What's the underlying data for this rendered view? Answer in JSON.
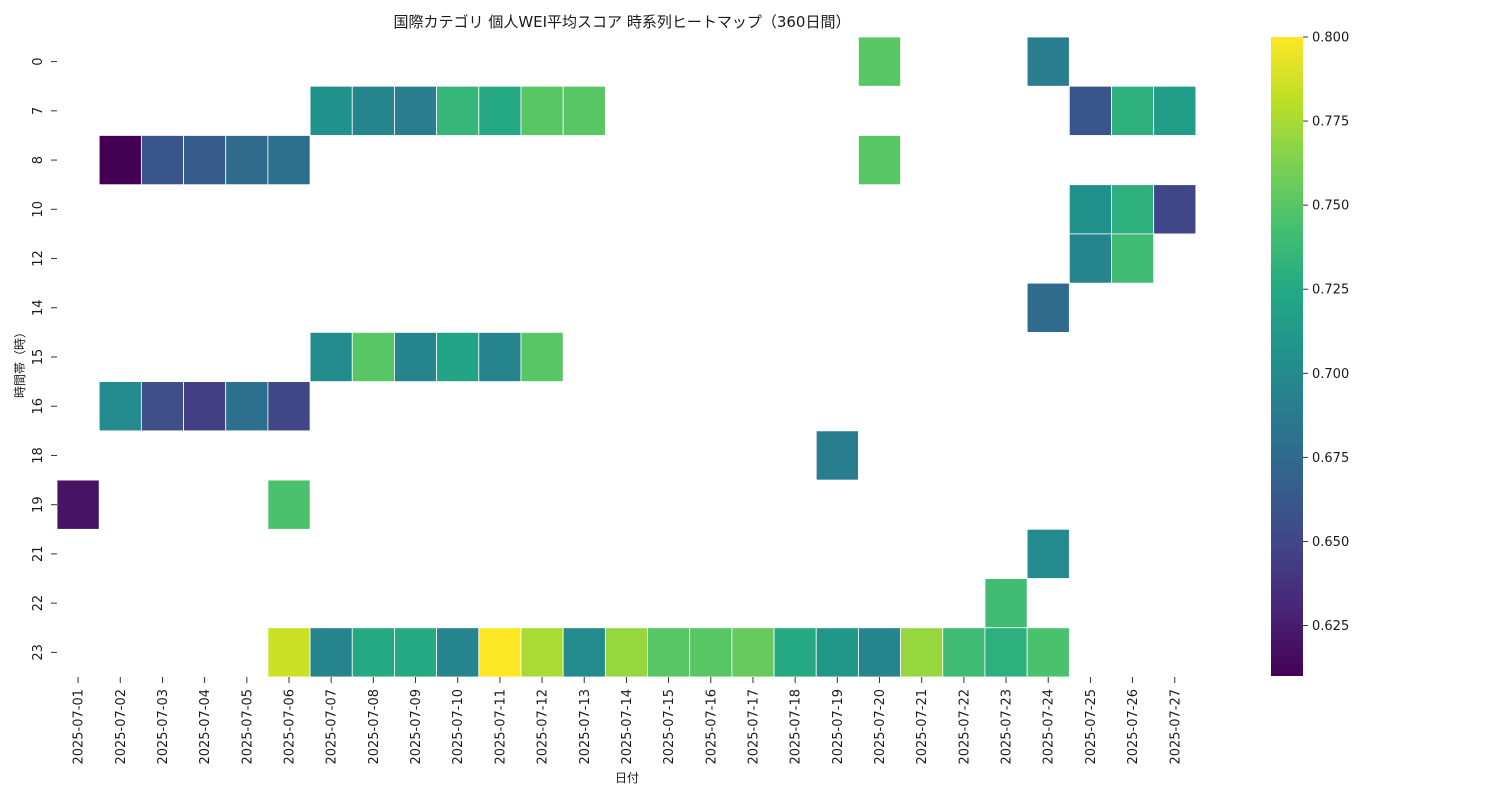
{
  "chart_data": {
    "type": "heatmap",
    "title": "国際カテゴリ 個人WEI平均スコア 時系列ヒートマップ（360日間）",
    "xlabel": "日付",
    "ylabel": "時間帯（時）",
    "x": [
      "2025-07-01",
      "2025-07-02",
      "2025-07-03",
      "2025-07-04",
      "2025-07-05",
      "2025-07-06",
      "2025-07-07",
      "2025-07-08",
      "2025-07-09",
      "2025-07-10",
      "2025-07-11",
      "2025-07-12",
      "2025-07-13",
      "2025-07-14",
      "2025-07-15",
      "2025-07-16",
      "2025-07-17",
      "2025-07-18",
      "2025-07-19",
      "2025-07-20",
      "2025-07-21",
      "2025-07-22",
      "2025-07-23",
      "2025-07-24",
      "2025-07-25",
      "2025-07-26",
      "2025-07-27"
    ],
    "y": [
      "0",
      "7",
      "8",
      "10",
      "12",
      "14",
      "15",
      "16",
      "18",
      "19",
      "21",
      "22",
      "23"
    ],
    "values": [
      [
        null,
        null,
        null,
        null,
        null,
        null,
        null,
        null,
        null,
        null,
        null,
        null,
        null,
        null,
        null,
        null,
        null,
        null,
        null,
        0.75,
        null,
        null,
        null,
        0.69,
        null,
        null,
        null
      ],
      [
        null,
        null,
        null,
        null,
        null,
        null,
        0.705,
        0.695,
        0.69,
        0.735,
        0.725,
        0.75,
        0.75,
        null,
        null,
        null,
        null,
        null,
        null,
        null,
        null,
        null,
        null,
        null,
        0.66,
        0.73,
        0.715
      ],
      [
        null,
        0.61,
        0.66,
        0.665,
        0.675,
        0.68,
        null,
        null,
        null,
        null,
        null,
        null,
        null,
        null,
        null,
        null,
        null,
        null,
        null,
        0.75,
        null,
        null,
        null,
        null,
        null,
        null,
        null
      ],
      [
        null,
        null,
        null,
        null,
        null,
        null,
        null,
        null,
        null,
        null,
        null,
        null,
        null,
        null,
        null,
        null,
        null,
        null,
        null,
        null,
        null,
        null,
        null,
        null,
        0.705,
        0.73,
        0.65
      ],
      [
        null,
        null,
        null,
        null,
        null,
        null,
        null,
        null,
        null,
        null,
        null,
        null,
        null,
        null,
        null,
        null,
        null,
        null,
        null,
        null,
        null,
        null,
        null,
        null,
        0.695,
        0.74,
        null
      ],
      [
        null,
        null,
        null,
        null,
        null,
        null,
        null,
        null,
        null,
        null,
        null,
        null,
        null,
        null,
        null,
        null,
        null,
        null,
        null,
        null,
        null,
        null,
        null,
        0.675,
        null,
        null,
        null
      ],
      [
        null,
        null,
        null,
        null,
        null,
        null,
        0.7,
        0.75,
        0.695,
        0.72,
        0.695,
        0.75,
        null,
        null,
        null,
        null,
        null,
        null,
        null,
        null,
        null,
        null,
        null,
        null,
        null,
        null,
        null
      ],
      [
        null,
        0.7,
        0.655,
        0.645,
        0.68,
        0.65,
        null,
        null,
        null,
        null,
        null,
        null,
        null,
        null,
        null,
        null,
        null,
        null,
        null,
        null,
        null,
        null,
        null,
        null,
        null,
        null,
        null
      ],
      [
        null,
        null,
        null,
        null,
        null,
        null,
        null,
        null,
        null,
        null,
        null,
        null,
        null,
        null,
        null,
        null,
        null,
        null,
        0.69,
        null,
        null,
        null,
        null,
        null,
        null,
        null,
        null
      ],
      [
        0.62,
        null,
        null,
        null,
        null,
        0.745,
        null,
        null,
        null,
        null,
        null,
        null,
        null,
        null,
        null,
        null,
        null,
        null,
        null,
        null,
        null,
        null,
        null,
        null,
        null,
        null,
        null
      ],
      [
        null,
        null,
        null,
        null,
        null,
        null,
        null,
        null,
        null,
        null,
        null,
        null,
        null,
        null,
        null,
        null,
        null,
        null,
        null,
        null,
        null,
        null,
        null,
        0.7,
        null,
        null,
        null
      ],
      [
        null,
        null,
        null,
        null,
        null,
        null,
        null,
        null,
        null,
        null,
        null,
        null,
        null,
        null,
        null,
        null,
        null,
        null,
        null,
        null,
        null,
        null,
        0.74,
        null,
        null,
        null,
        null
      ],
      [
        null,
        null,
        null,
        null,
        null,
        0.785,
        0.695,
        0.725,
        0.725,
        0.695,
        0.8,
        0.775,
        0.7,
        0.77,
        0.75,
        0.75,
        0.755,
        0.725,
        0.71,
        0.695,
        0.77,
        0.74,
        0.73,
        0.745,
        null,
        null,
        null
      ]
    ],
    "colorscale": "viridis",
    "colorbar": {
      "min": 0.61,
      "max": 0.8,
      "ticks": [
        0.625,
        0.65,
        0.675,
        0.7,
        0.725,
        0.75,
        0.775,
        0.8
      ],
      "tick_labels": [
        "0.625",
        "0.650",
        "0.675",
        "0.700",
        "0.725",
        "0.750",
        "0.775",
        "0.800"
      ]
    },
    "grid": false
  }
}
